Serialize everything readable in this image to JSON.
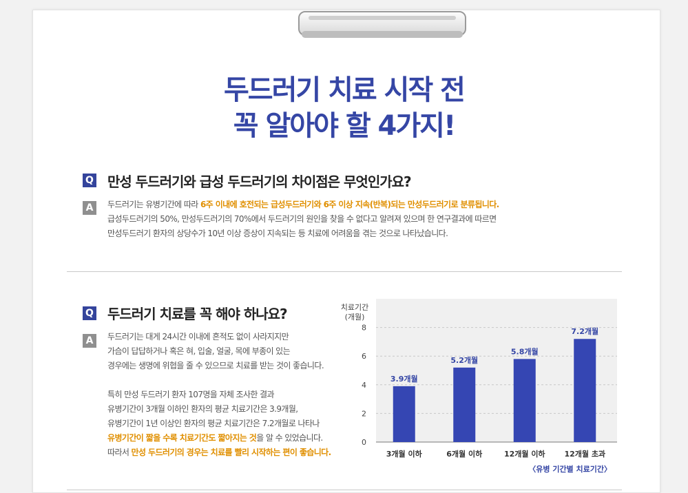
{
  "title": {
    "line1": "두드러기 치료 시작 전",
    "line2": "꼭 알아야 할 4가지!"
  },
  "qa1": {
    "q_icon": "Q",
    "question": "만성 두드러기와 급성 두드러기의 차이점은 무엇인가요?",
    "a_icon": "A",
    "answer": {
      "l1_pre": "두드러기는 유병기간에 따라 ",
      "l1_hl": "6주 이내에 호전되는 급성두드러기와 6주 이상 지속(반복)되는 만성두드러기로 분류됩니다.",
      "l2": "급성두드러기의 50%, 만성두드러기의 70%에서 두드러기의 원인을 찾을 수 없다고 알려져 있으며 한 연구결과에 따르면",
      "l3": "만성두드러기 환자의 상당수가 10년 이상 증상이 지속되는 등 치료에 어려움을 겪는 것으로 나타났습니다."
    }
  },
  "qa2": {
    "q_icon": "Q",
    "question": "두드러기 치료를 꼭 해야 하나요?",
    "a_icon": "A",
    "answer": {
      "p1": [
        "두드러기는 대게 24시간 이내에 흔적도 없이 사라지지만",
        "가슴이 답답하거나 혹은 혀, 입술, 얼굴, 목에 부종이 있는",
        "경우에는 생명에 위협을 줄 수 있으므로 치료를 받는 것이 좋습니다."
      ],
      "p2_1": "특히 만성 두드러기 환자 107명을 자체 조사한 결과",
      "p2_2": "유병기간이 3개월 이하인 환자의 평균 치료기간은 3.9개월,",
      "p2_3": "유병기간이 1년 이상인 환자의 평균 치료기간은 7.2개월로 나타나",
      "p2_4_hl": "유병기간이 짧을 수록 치료기간도 짧아지는 것",
      "p2_4_post": "을 알 수 있었습니다.",
      "p2_5_pre": "따라서 ",
      "p2_5_hl": "만성 두드러기의 경우는 치료를 빨리 시작하는 편이 좋습니다."
    }
  },
  "colors": {
    "accent": "#3546a5",
    "bar": "#3546b3",
    "highlight": "#e08f00",
    "q_badge": "#34449c",
    "a_badge": "#8f8f8f"
  },
  "chart_data": {
    "type": "bar",
    "ylabel": "치료기간 (개월)",
    "ylabel_line1": "치료기간",
    "ylabel_line2": "(개월)",
    "categories": [
      "3개월 이하",
      "6개월 이하",
      "12개월 이하",
      "12개월 초과"
    ],
    "values": [
      3.9,
      5.2,
      5.8,
      7.2
    ],
    "value_labels": [
      "3.9개월",
      "5.2개월",
      "5.8개월",
      "7.2개월"
    ],
    "yticks": [
      "0",
      "2",
      "4",
      "6",
      "8"
    ],
    "ylim": [
      0,
      10
    ],
    "grid": true,
    "caption": "〈유병 기간별 치료기간〉"
  }
}
